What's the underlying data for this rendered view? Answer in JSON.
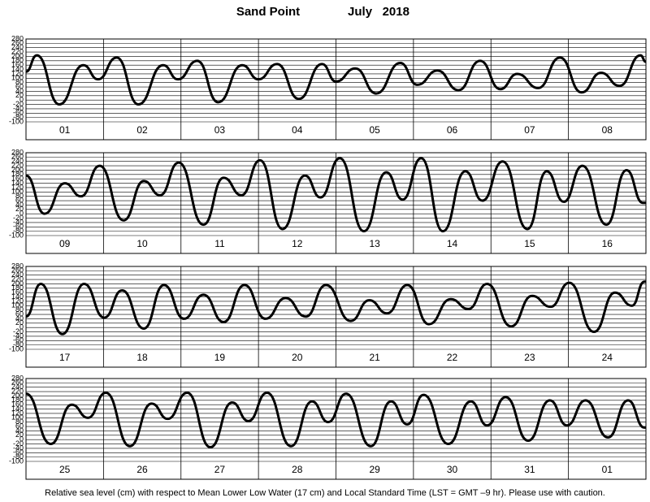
{
  "title": "Sand Point",
  "subtitle": "July   2018",
  "footnote": "Relative sea level (cm) with respect to Mean Lower Low Water (17 cm) and Local Standard Time (LST = GMT –9 hr). Please use with caution.",
  "chart_data": [
    {
      "type": "line",
      "xlim": [
        1,
        9
      ],
      "ylim": [
        -100,
        280
      ],
      "yticks": [
        -100,
        -80,
        -60,
        -40,
        -20,
        0,
        20,
        40,
        60,
        80,
        100,
        120,
        140,
        160,
        180,
        200,
        220,
        240,
        260,
        280
      ],
      "categories": [
        "01",
        "02",
        "03",
        "04",
        "05",
        "06",
        "07",
        "08"
      ],
      "x": [
        1.0,
        1.14,
        1.43,
        1.74,
        1.93,
        2.17,
        2.45,
        2.77,
        2.96,
        3.21,
        3.48,
        3.79,
        4.0,
        4.24,
        4.52,
        4.82,
        5.0,
        5.25,
        5.52,
        5.83,
        6.05,
        6.31,
        6.58,
        6.86,
        7.12,
        7.34,
        7.61,
        7.89,
        8.17,
        8.42,
        8.66,
        8.93,
        9.0
      ],
      "values": [
        130,
        205,
        -20,
        160,
        95,
        195,
        -20,
        160,
        95,
        180,
        -10,
        160,
        95,
        165,
        5,
        165,
        85,
        145,
        30,
        170,
        70,
        135,
        45,
        180,
        50,
        120,
        55,
        195,
        35,
        125,
        65,
        205,
        175
      ]
    },
    {
      "type": "line",
      "xlim": [
        9,
        17
      ],
      "ylim": [
        -100,
        280
      ],
      "yticks": [
        -100,
        -80,
        -60,
        -40,
        -20,
        0,
        20,
        40,
        60,
        80,
        100,
        120,
        140,
        160,
        180,
        200,
        220,
        240,
        260,
        280
      ],
      "categories": [
        "09",
        "10",
        "11",
        "12",
        "13",
        "14",
        "15",
        "16"
      ],
      "x": [
        9.0,
        9.24,
        9.5,
        9.71,
        9.95,
        10.26,
        10.52,
        10.73,
        10.97,
        11.29,
        11.55,
        11.78,
        12.02,
        12.31,
        12.6,
        12.8,
        13.05,
        13.36,
        13.65,
        13.86,
        14.1,
        14.38,
        14.67,
        14.89,
        15.15,
        15.47,
        15.72,
        15.94,
        16.18,
        16.49,
        16.75,
        16.96,
        17.0
      ],
      "values": [
        175,
        0,
        140,
        80,
        220,
        -30,
        150,
        85,
        235,
        -50,
        165,
        85,
        245,
        -70,
        175,
        75,
        255,
        -80,
        190,
        65,
        255,
        -80,
        195,
        60,
        240,
        -70,
        195,
        55,
        220,
        -50,
        200,
        50,
        50
      ]
    },
    {
      "type": "line",
      "xlim": [
        17,
        25
      ],
      "ylim": [
        -100,
        280
      ],
      "yticks": [
        -100,
        -80,
        -60,
        -40,
        -20,
        0,
        20,
        40,
        60,
        80,
        100,
        120,
        140,
        160,
        180,
        200,
        220,
        240,
        260,
        280
      ],
      "categories": [
        "17",
        "18",
        "19",
        "20",
        "21",
        "22",
        "23",
        "24"
      ],
      "x": [
        17.0,
        17.19,
        17.47,
        17.75,
        18.01,
        18.24,
        18.52,
        18.78,
        19.04,
        19.29,
        19.55,
        19.82,
        20.09,
        20.35,
        20.61,
        20.87,
        21.19,
        21.43,
        21.66,
        21.92,
        22.2,
        22.48,
        22.71,
        22.95,
        23.26,
        23.53,
        23.77,
        24.01,
        24.33,
        24.6,
        24.82,
        24.98,
        25.0
      ],
      "values": [
        50,
        200,
        -30,
        200,
        45,
        170,
        -5,
        195,
        40,
        150,
        25,
        195,
        40,
        135,
        50,
        195,
        30,
        125,
        65,
        195,
        15,
        130,
        85,
        200,
        5,
        145,
        95,
        205,
        -20,
        160,
        100,
        210,
        210
      ]
    },
    {
      "type": "line",
      "xlim": [
        25,
        33
      ],
      "ylim": [
        -100,
        280
      ],
      "yticks": [
        -100,
        -80,
        -60,
        -40,
        -20,
        0,
        20,
        40,
        60,
        80,
        100,
        120,
        140,
        160,
        180,
        200,
        220,
        240,
        260,
        280
      ],
      "categories": [
        "25",
        "26",
        "27",
        "28",
        "29",
        "30",
        "31",
        "01"
      ],
      "x": [
        25.0,
        25.32,
        25.59,
        25.8,
        26.03,
        26.34,
        26.62,
        26.83,
        27.08,
        27.38,
        27.66,
        27.87,
        28.11,
        28.42,
        28.69,
        28.9,
        29.13,
        29.45,
        29.71,
        29.92,
        30.13,
        30.45,
        30.74,
        30.95,
        31.19,
        31.48,
        31.76,
        31.98,
        32.22,
        32.51,
        32.77,
        32.98,
        33.0
      ],
      "values": [
        210,
        -20,
        160,
        100,
        215,
        -30,
        165,
        95,
        215,
        -35,
        170,
        85,
        215,
        -30,
        175,
        80,
        210,
        -30,
        175,
        70,
        205,
        -20,
        175,
        65,
        195,
        -5,
        180,
        65,
        180,
        10,
        180,
        55,
        55
      ]
    }
  ]
}
